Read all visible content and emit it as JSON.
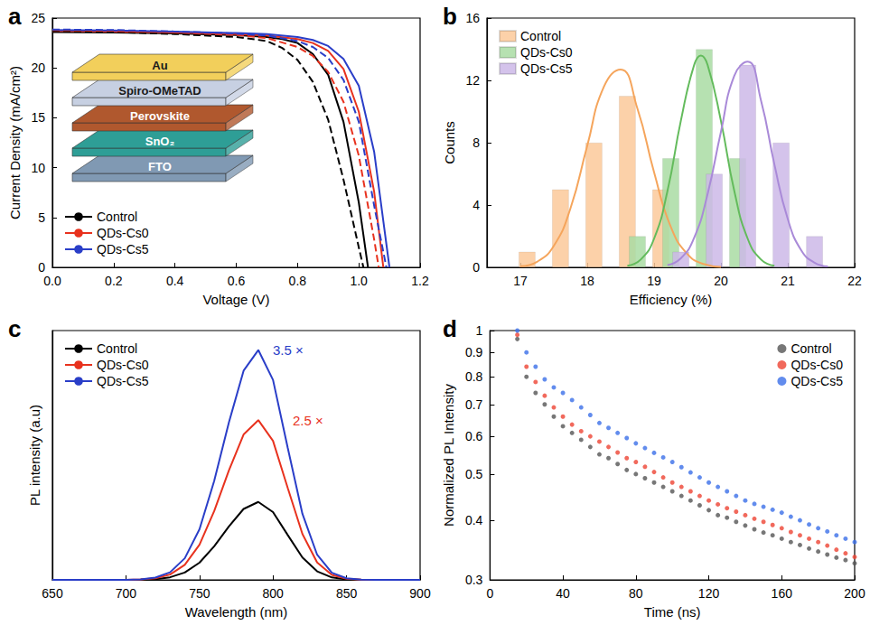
{
  "chart_data": [
    {
      "title": "a",
      "type": "line",
      "x_label": "Voltage (V)",
      "y_label": "Current Density (mA/cm²)",
      "xlim": [
        0,
        1.2
      ],
      "xticks": [
        {
          "value": 0,
          "label": "0.0"
        },
        0.2,
        0.4,
        0.6,
        0.8,
        {
          "value": 1,
          "label": "1.0"
        },
        1.2
      ],
      "ylim": [
        0,
        25
      ],
      "yticks": [
        0,
        5,
        10,
        15,
        20,
        25
      ],
      "grid": false,
      "legend": "bottom-left",
      "series": [
        {
          "name": "Control",
          "color": "#000000",
          "line_style": "solid",
          "x": [
            0,
            0.2,
            0.4,
            0.6,
            0.7,
            0.75,
            0.8,
            0.85,
            0.9,
            0.95,
            1.0,
            1.03
          ],
          "values": [
            23.6,
            23.55,
            23.45,
            23.3,
            23.1,
            22.9,
            22.5,
            21.4,
            19.3,
            14.6,
            6.5,
            0
          ]
        },
        {
          "name": "QDs-Cs0",
          "color": "#e8321e",
          "line_style": "solid",
          "x": [
            0,
            0.2,
            0.4,
            0.6,
            0.7,
            0.8,
            0.85,
            0.9,
            0.95,
            1.0,
            1.05,
            1.08
          ],
          "values": [
            23.7,
            23.65,
            23.55,
            23.4,
            23.25,
            22.9,
            22.5,
            21.7,
            19.9,
            15.6,
            7.6,
            0
          ]
        },
        {
          "name": "QDs-Cs5",
          "color": "#2a3ec8",
          "line_style": "solid",
          "x": [
            0,
            0.2,
            0.4,
            0.6,
            0.7,
            0.8,
            0.85,
            0.9,
            0.95,
            1.0,
            1.05,
            1.1
          ],
          "values": [
            23.8,
            23.75,
            23.65,
            23.5,
            23.4,
            23.1,
            22.8,
            22.2,
            20.9,
            18.2,
            11.6,
            0
          ]
        },
        {
          "name": "Control",
          "color": "#000000",
          "line_style": "dashed",
          "x": [
            0,
            0.2,
            0.4,
            0.6,
            0.7,
            0.75,
            0.8,
            0.85,
            0.9,
            0.95,
            1.0,
            1.015
          ],
          "values": [
            23.7,
            23.6,
            23.4,
            23.1,
            22.7,
            22.0,
            20.8,
            18.6,
            14.8,
            8.8,
            2.0,
            0
          ]
        },
        {
          "name": "QDs-Cs0",
          "color": "#e8321e",
          "line_style": "dashed",
          "x": [
            0,
            0.2,
            0.4,
            0.6,
            0.7,
            0.8,
            0.85,
            0.9,
            0.95,
            1.0,
            1.05,
            1.065
          ],
          "values": [
            23.8,
            23.7,
            23.55,
            23.3,
            23.0,
            22.1,
            21.2,
            19.6,
            16.6,
            11.2,
            2.8,
            0
          ]
        },
        {
          "name": "QDs-Cs5",
          "color": "#2a3ec8",
          "line_style": "dashed",
          "x": [
            0,
            0.2,
            0.4,
            0.6,
            0.7,
            0.8,
            0.85,
            0.9,
            0.95,
            1.0,
            1.05,
            1.09
          ],
          "values": [
            23.85,
            23.8,
            23.65,
            23.45,
            23.25,
            22.7,
            22.1,
            21.0,
            18.8,
            14.6,
            6.2,
            0
          ]
        }
      ],
      "inset": {
        "layers": [
          {
            "label": "Au",
            "color": "#f2cf5b"
          },
          {
            "label": "Spiro-OMeTAD",
            "color": "#c7d0e2"
          },
          {
            "label": "Perovskite",
            "color": "#b0582e"
          },
          {
            "label": "SnO₂",
            "color": "#2e9e96"
          },
          {
            "label": "FTO",
            "color": "#8099b3"
          }
        ]
      }
    },
    {
      "title": "b",
      "type": "bar",
      "x_label": "Efficiency (%)",
      "y_label": "Counts",
      "xlim": [
        16.5,
        22
      ],
      "xticks": [
        17,
        18,
        19,
        20,
        21,
        22
      ],
      "ylim": [
        0,
        16
      ],
      "yticks": [
        0,
        4,
        8,
        12,
        16
      ],
      "grid": false,
      "legend": "top-left",
      "series": [
        {
          "name": "Control",
          "type": "bar",
          "color": "#fbc99a",
          "x": [
            17.1,
            17.6,
            18.1,
            18.6,
            19.1
          ],
          "values": [
            1,
            5,
            8,
            11,
            5
          ]
        },
        {
          "name": "QDs-Cs0",
          "type": "bar",
          "color": "#a9dca3",
          "x": [
            18.75,
            19.25,
            19.75,
            20.25
          ],
          "values": [
            2,
            7,
            14,
            7
          ]
        },
        {
          "name": "QDs-Cs5",
          "type": "bar",
          "color": "#cdb8e8",
          "x": [
            19.4,
            19.9,
            20.4,
            20.9,
            21.4
          ],
          "values": [
            1,
            6,
            13,
            8,
            2
          ]
        },
        {
          "name": "Control",
          "type": "line",
          "color": "#f5a55c",
          "x": [
            17.0,
            17.25,
            17.5,
            17.75,
            18.0,
            18.25,
            18.5,
            18.75,
            19.0,
            19.25,
            19.5,
            19.75,
            20.0
          ],
          "values": [
            0.07,
            0.36,
            1.38,
            3.8,
            7.8,
            11.6,
            12.7,
            10.2,
            6.1,
            2.6,
            0.85,
            0.2,
            0.03
          ]
        },
        {
          "name": "QDs-Cs0",
          "type": "line",
          "color": "#63bb5c",
          "x": [
            18.6,
            18.8,
            19.0,
            19.2,
            19.4,
            19.6,
            19.7,
            19.8,
            20.0,
            20.2,
            20.4,
            20.6,
            20.8
          ],
          "values": [
            0.1,
            0.5,
            1.84,
            4.9,
            9.4,
            13.0,
            13.6,
            13.0,
            9.4,
            4.9,
            1.84,
            0.5,
            0.1
          ]
        },
        {
          "name": "QDs-Cs5",
          "type": "line",
          "color": "#a98ad8",
          "x": [
            19.2,
            19.4,
            19.6,
            19.8,
            20.0,
            20.2,
            20.4,
            20.6,
            20.8,
            21.0,
            21.2,
            21.4,
            21.6
          ],
          "values": [
            0.14,
            0.58,
            1.9,
            4.7,
            8.7,
            12.3,
            13.2,
            10.7,
            6.6,
            3.1,
            1.1,
            0.3,
            0.06
          ]
        }
      ]
    },
    {
      "title": "c",
      "type": "line",
      "x_label": "Wavelength (nm)",
      "y_label": "PL intensity (a.u)",
      "xlim": [
        650,
        900
      ],
      "xticks": [
        650,
        700,
        750,
        800,
        850,
        900
      ],
      "ylim": [
        0,
        3.2
      ],
      "tick_labels": "x",
      "grid": false,
      "legend": "top-left",
      "x": [
        650,
        660,
        670,
        680,
        690,
        700,
        710,
        720,
        730,
        740,
        750,
        760,
        770,
        780,
        790,
        800,
        810,
        820,
        830,
        840,
        850,
        860,
        870,
        880,
        890,
        900
      ],
      "series": [
        {
          "name": "Control",
          "color": "#000000",
          "values": [
            0,
            0,
            0,
            0,
            0,
            0,
            0.002,
            0.01,
            0.033,
            0.094,
            0.22,
            0.43,
            0.685,
            0.91,
            1,
            0.87,
            0.575,
            0.287,
            0.109,
            0.031,
            0.007,
            0.001,
            0,
            0,
            0,
            0
          ]
        },
        {
          "name": "QDs-Cs0",
          "color": "#e8321e",
          "annotation": "2.5 ×",
          "values": [
            0,
            0,
            0,
            0,
            0,
            0.001,
            0.005,
            0.02,
            0.068,
            0.193,
            0.451,
            0.882,
            1.404,
            1.866,
            2.05,
            1.784,
            1.179,
            0.588,
            0.223,
            0.064,
            0.014,
            0.002,
            0,
            0,
            0,
            0
          ]
        },
        {
          "name": "QDs-Cs5",
          "color": "#2a3ec8",
          "annotation": "3.5 ×",
          "values": [
            0,
            0,
            0,
            0,
            0,
            0.001,
            0.007,
            0.029,
            0.097,
            0.277,
            0.649,
            1.269,
            2.021,
            2.685,
            2.95,
            2.567,
            1.696,
            0.847,
            0.322,
            0.091,
            0.02,
            0.003,
            0,
            0,
            0,
            0
          ]
        }
      ]
    },
    {
      "title": "d",
      "type": "scatter",
      "log": "y",
      "x_label": "Time (ns)",
      "y_label": "Normalized PL Intensity",
      "xlim": [
        0,
        200
      ],
      "xticks": [
        0,
        40,
        80,
        120,
        160,
        200
      ],
      "ylim": [
        0.3,
        1
      ],
      "yticks": [
        0.3,
        0.4,
        0.5,
        0.6,
        0.7,
        0.8,
        0.9,
        1
      ],
      "grid": false,
      "legend": "top-right",
      "marker": "circle",
      "x": [
        15,
        20,
        25,
        30,
        35,
        40,
        45,
        50,
        55,
        60,
        65,
        70,
        75,
        80,
        85,
        90,
        95,
        100,
        105,
        110,
        115,
        120,
        125,
        130,
        135,
        140,
        145,
        150,
        155,
        160,
        165,
        170,
        175,
        180,
        185,
        190,
        195,
        200
      ],
      "series": [
        {
          "name": "Control",
          "color": "#555555",
          "values": [
            0.96,
            0.8,
            0.74,
            0.7,
            0.66,
            0.63,
            0.61,
            0.59,
            0.57,
            0.55,
            0.54,
            0.525,
            0.51,
            0.5,
            0.49,
            0.48,
            0.47,
            0.46,
            0.45,
            0.44,
            0.43,
            0.42,
            0.41,
            0.405,
            0.397,
            0.39,
            0.383,
            0.377,
            0.372,
            0.366,
            0.36,
            0.355,
            0.349,
            0.344,
            0.339,
            0.334,
            0.33,
            0.325
          ]
        },
        {
          "name": "QDs-Cs0",
          "color": "#ee4433",
          "values": [
            0.98,
            0.84,
            0.78,
            0.73,
            0.69,
            0.66,
            0.635,
            0.615,
            0.6,
            0.585,
            0.57,
            0.555,
            0.54,
            0.53,
            0.518,
            0.505,
            0.492,
            0.48,
            0.47,
            0.46,
            0.45,
            0.44,
            0.432,
            0.424,
            0.417,
            0.41,
            0.403,
            0.397,
            0.391,
            0.385,
            0.378,
            0.372,
            0.366,
            0.36,
            0.354,
            0.347,
            0.341,
            0.335
          ]
        },
        {
          "name": "QDs-Cs5",
          "color": "#3b6fe8",
          "values": [
            1,
            0.9,
            0.84,
            0.79,
            0.76,
            0.74,
            0.715,
            0.69,
            0.665,
            0.64,
            0.625,
            0.61,
            0.595,
            0.58,
            0.567,
            0.554,
            0.542,
            0.53,
            0.517,
            0.504,
            0.492,
            0.48,
            0.47,
            0.46,
            0.45,
            0.44,
            0.433,
            0.427,
            0.421,
            0.415,
            0.407,
            0.4,
            0.392,
            0.385,
            0.379,
            0.372,
            0.366,
            0.36
          ]
        }
      ]
    }
  ]
}
